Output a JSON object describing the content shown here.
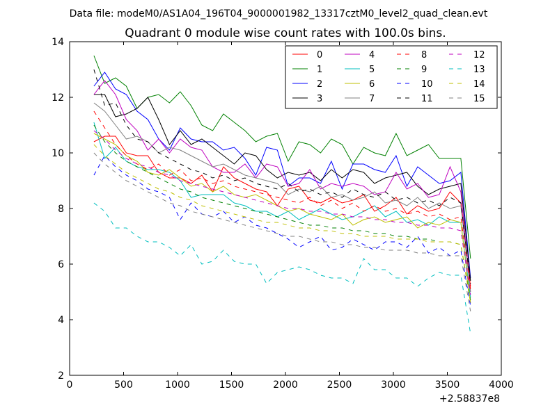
{
  "header": {
    "suptitle": "Data file: modeM0/AS1A04_196T04_9000001982_13317cztM0_level2_quad_clean.evt"
  },
  "chart_data": {
    "type": "line",
    "title": "Quadrant 0 module wise count rates with 100.0s bins.",
    "xlabel": "",
    "ylabel": "",
    "x_offset_label": "+2.58837e8",
    "xlim": [
      0,
      4000
    ],
    "ylim": [
      2,
      14
    ],
    "xticks": [
      0,
      500,
      1000,
      1500,
      2000,
      2500,
      3000,
      3500,
      4000
    ],
    "yticks": [
      2,
      4,
      6,
      8,
      10,
      12,
      14
    ],
    "grid": false,
    "legend_placement": "top-right",
    "legend_columns": 4,
    "x": [
      225,
      325,
      425,
      525,
      625,
      725,
      825,
      925,
      1025,
      1125,
      1225,
      1325,
      1425,
      1525,
      1625,
      1725,
      1825,
      1925,
      2025,
      2125,
      2225,
      2325,
      2425,
      2525,
      2625,
      2725,
      2825,
      2925,
      3025,
      3125,
      3225,
      3325,
      3425,
      3525,
      3625,
      3715
    ],
    "series": [
      {
        "name": "0",
        "color": "#ff0000",
        "dash": "solid",
        "values": [
          10.4,
          10.6,
          10.6,
          10.0,
          9.9,
          9.9,
          9.3,
          9.1,
          9.1,
          8.9,
          9.2,
          8.6,
          9.5,
          9.1,
          8.9,
          8.7,
          8.6,
          8.1,
          8.7,
          8.8,
          8.3,
          8.2,
          8.4,
          8.2,
          8.3,
          8.5,
          7.9,
          8.1,
          8.4,
          7.8,
          8.1,
          7.9,
          8.0,
          8.6,
          8.2,
          5.2
        ]
      },
      {
        "name": "1",
        "color": "#008000",
        "dash": "solid",
        "values": [
          13.5,
          12.5,
          12.7,
          12.4,
          11.6,
          12.0,
          12.1,
          11.8,
          12.2,
          11.7,
          11.0,
          10.8,
          11.4,
          11.1,
          10.8,
          10.4,
          10.6,
          10.7,
          9.7,
          10.4,
          10.3,
          10.0,
          10.5,
          10.3,
          9.6,
          10.2,
          10.0,
          9.9,
          10.7,
          9.9,
          10.1,
          10.3,
          9.8,
          9.8,
          9.8,
          6.2
        ]
      },
      {
        "name": "2",
        "color": "#0000ff",
        "dash": "solid",
        "values": [
          12.4,
          12.9,
          12.3,
          12.1,
          11.5,
          11.2,
          10.5,
          10.1,
          10.9,
          10.5,
          10.4,
          10.4,
          10.1,
          10.2,
          9.8,
          9.2,
          10.2,
          10.1,
          8.8,
          9.1,
          9.1,
          8.9,
          9.7,
          8.7,
          9.6,
          9.6,
          9.4,
          9.3,
          9.9,
          8.8,
          9.5,
          9.2,
          8.9,
          9.0,
          9.3,
          5.5
        ]
      },
      {
        "name": "3",
        "color": "#000000",
        "dash": "solid",
        "values": [
          12.1,
          12.1,
          11.3,
          11.4,
          11.6,
          12.0,
          11.2,
          10.3,
          10.8,
          10.3,
          10.5,
          10.2,
          9.9,
          9.6,
          10.0,
          9.9,
          9.4,
          9.1,
          9.3,
          9.2,
          9.3,
          9.0,
          9.4,
          9.1,
          9.4,
          9.3,
          8.9,
          9.1,
          9.2,
          9.3,
          8.8,
          8.5,
          8.7,
          8.8,
          8.9,
          5.4
        ]
      },
      {
        "name": "4",
        "color": "#bf00bf",
        "dash": "solid",
        "values": [
          12.1,
          12.6,
          12.1,
          11.2,
          10.8,
          10.1,
          10.5,
          10.0,
          10.5,
          10.2,
          10.1,
          9.5,
          9.3,
          9.3,
          9.6,
          9.1,
          9.6,
          9.5,
          8.8,
          8.9,
          9.4,
          8.7,
          8.9,
          8.8,
          8.9,
          8.8,
          8.5,
          8.6,
          9.3,
          8.7,
          8.9,
          8.4,
          8.5,
          9.5,
          8.6,
          5.0
        ]
      },
      {
        "name": "5",
        "color": "#00bfbf",
        "dash": "solid",
        "values": [
          11.1,
          9.8,
          10.2,
          9.7,
          9.5,
          9.4,
          9.4,
          9.3,
          9.0,
          8.4,
          8.5,
          8.5,
          8.5,
          8.2,
          8.1,
          7.9,
          7.9,
          7.7,
          7.9,
          7.6,
          7.8,
          8.0,
          7.8,
          7.6,
          7.7,
          7.9,
          8.1,
          7.7,
          7.9,
          7.5,
          7.6,
          7.4,
          7.7,
          7.5,
          7.5,
          4.8
        ]
      },
      {
        "name": "6",
        "color": "#bfbf00",
        "dash": "solid",
        "values": [
          10.7,
          10.5,
          10.3,
          9.9,
          9.7,
          9.3,
          9.2,
          9.4,
          9.1,
          8.8,
          8.9,
          8.6,
          8.8,
          8.5,
          8.4,
          8.5,
          8.3,
          8.1,
          7.9,
          8.0,
          7.8,
          7.7,
          7.6,
          7.8,
          7.4,
          7.6,
          7.7,
          7.5,
          7.6,
          7.7,
          7.3,
          7.5,
          7.4,
          7.6,
          7.5,
          4.6
        ]
      },
      {
        "name": "7",
        "color": "#808080",
        "dash": "solid",
        "values": [
          11.8,
          11.5,
          11.0,
          10.5,
          10.6,
          10.4,
          10.0,
          10.2,
          10.1,
          9.9,
          9.7,
          9.5,
          9.6,
          9.4,
          9.2,
          9.1,
          9.0,
          8.9,
          8.5,
          8.7,
          8.6,
          8.8,
          8.4,
          8.5,
          8.3,
          8.4,
          8.6,
          8.2,
          8.3,
          8.1,
          8.4,
          8.0,
          8.2,
          8.0,
          8.1,
          5.0
        ]
      },
      {
        "name": "8",
        "color": "#ff0000",
        "dash": "dashed",
        "values": [
          11.5,
          10.9,
          10.3,
          9.9,
          9.6,
          9.4,
          9.6,
          9.2,
          9.4,
          9.0,
          9.1,
          8.9,
          9.0,
          8.8,
          8.7,
          8.6,
          8.5,
          8.4,
          8.3,
          8.2,
          8.4,
          8.1,
          8.3,
          8.0,
          8.2,
          7.9,
          8.1,
          7.9,
          8.0,
          7.8,
          7.9,
          7.7,
          7.8,
          7.6,
          7.7,
          5.1
        ]
      },
      {
        "name": "9",
        "color": "#008000",
        "dash": "dashed",
        "values": [
          11.0,
          10.4,
          10.0,
          9.7,
          9.5,
          9.3,
          9.1,
          8.9,
          8.7,
          8.6,
          8.4,
          8.3,
          8.2,
          8.1,
          8.0,
          7.9,
          7.8,
          7.7,
          7.6,
          7.5,
          7.4,
          7.4,
          7.3,
          7.3,
          7.2,
          7.2,
          7.1,
          7.1,
          7.0,
          7.0,
          6.9,
          6.9,
          6.8,
          6.8,
          6.7,
          4.7
        ]
      },
      {
        "name": "10",
        "color": "#0000ff",
        "dash": "dashed",
        "values": [
          9.2,
          9.9,
          9.5,
          9.2,
          9.0,
          8.7,
          8.6,
          8.4,
          7.6,
          8.2,
          7.8,
          7.7,
          7.9,
          7.5,
          7.7,
          7.4,
          7.3,
          7.1,
          6.9,
          6.6,
          6.8,
          7.0,
          6.5,
          6.6,
          6.9,
          6.7,
          6.5,
          6.8,
          6.8,
          6.6,
          7.0,
          6.4,
          6.6,
          6.3,
          6.5,
          4.5
        ]
      },
      {
        "name": "11",
        "color": "#000000",
        "dash": "dashed",
        "values": [
          13.0,
          11.7,
          11.8,
          11.0,
          10.5,
          10.4,
          10.0,
          9.8,
          9.6,
          9.4,
          9.3,
          9.1,
          9.2,
          9.0,
          9.1,
          8.9,
          8.8,
          8.7,
          8.9,
          8.6,
          8.7,
          8.5,
          8.6,
          8.4,
          8.7,
          8.5,
          8.4,
          8.6,
          8.3,
          8.4,
          8.2,
          8.3,
          8.1,
          8.4,
          8.2,
          5.3
        ]
      },
      {
        "name": "12",
        "color": "#bf00bf",
        "dash": "dashed",
        "values": [
          10.8,
          10.5,
          10.1,
          9.8,
          9.6,
          9.5,
          9.3,
          9.2,
          9.0,
          8.9,
          8.8,
          8.7,
          8.6,
          8.5,
          8.4,
          8.3,
          8.2,
          8.1,
          8.0,
          8.0,
          7.9,
          7.9,
          7.8,
          7.8,
          7.7,
          7.7,
          7.6,
          7.6,
          7.5,
          7.5,
          7.4,
          7.4,
          7.3,
          7.3,
          7.2,
          4.9
        ]
      },
      {
        "name": "13",
        "color": "#00bfbf",
        "dash": "dashed",
        "values": [
          8.2,
          7.9,
          7.3,
          7.3,
          7.0,
          6.8,
          6.8,
          6.6,
          6.3,
          6.7,
          6.0,
          6.1,
          6.5,
          6.1,
          6.0,
          6.0,
          5.3,
          5.7,
          5.8,
          5.9,
          5.8,
          5.6,
          5.5,
          5.5,
          5.3,
          6.2,
          5.8,
          5.8,
          5.5,
          5.5,
          5.2,
          5.5,
          5.7,
          5.6,
          5.6,
          3.5
        ]
      },
      {
        "name": "14",
        "color": "#bfbf00",
        "dash": "dashed",
        "values": [
          10.3,
          9.9,
          9.6,
          9.3,
          9.1,
          8.9,
          8.7,
          8.6,
          8.4,
          8.3,
          8.1,
          8.0,
          7.9,
          7.8,
          7.7,
          7.6,
          7.5,
          7.5,
          7.4,
          7.3,
          7.3,
          7.2,
          7.2,
          7.1,
          7.1,
          7.0,
          7.0,
          7.0,
          6.9,
          6.9,
          6.9,
          6.8,
          6.8,
          6.8,
          6.7,
          4.6
        ]
      },
      {
        "name": "15",
        "color": "#808080",
        "dash": "dashed",
        "values": [
          10.0,
          9.6,
          9.3,
          9.0,
          8.8,
          8.6,
          8.4,
          8.2,
          8.1,
          7.9,
          7.8,
          7.7,
          7.6,
          7.5,
          7.4,
          7.3,
          7.2,
          7.1,
          7.0,
          7.0,
          6.9,
          6.8,
          6.8,
          6.7,
          6.7,
          6.6,
          6.6,
          6.5,
          6.5,
          6.5,
          6.4,
          6.4,
          6.3,
          6.3,
          6.3,
          4.3
        ]
      }
    ]
  }
}
